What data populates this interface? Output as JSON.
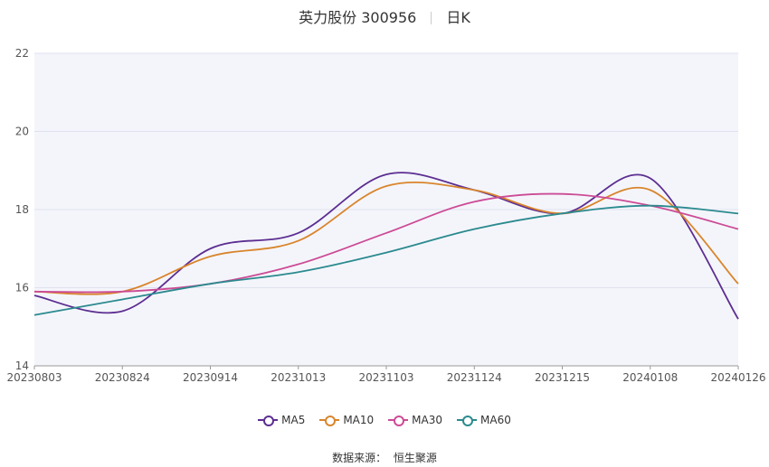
{
  "header": {
    "title": "英力股份 300956",
    "period": "日K"
  },
  "source": {
    "label": "数据来源：",
    "name": "恒生聚源"
  },
  "colors": {
    "up": "#ee6f6f",
    "down": "#91e85a",
    "ma5": "#5c2e91",
    "ma10": "#d9852c",
    "ma30": "#cc4b96",
    "ma60": "#2b8a8e",
    "plot_bg": "#f4f5fb"
  },
  "chart_data": {
    "type": "candlestick",
    "title": "英力股份 300956",
    "xlabel": "",
    "ylabel": "",
    "ylim": [
      14,
      22
    ],
    "yticks": [
      14,
      16,
      18,
      20,
      22
    ],
    "xticks": [
      "20230803",
      "20230824",
      "20230914",
      "20231013",
      "20231103",
      "20231124",
      "20231215",
      "20240108",
      "20240126"
    ],
    "grid": true,
    "legend": {
      "position": "bottom",
      "entries": [
        "MA5",
        "MA10",
        "MA30",
        "MA60"
      ]
    },
    "series": [
      {
        "name": "MA5",
        "x": [
          "20230803",
          "20230824",
          "20230914",
          "20231013",
          "20231103",
          "20231124",
          "20231215",
          "20240108",
          "20240126"
        ],
        "values": [
          15.8,
          15.4,
          17.0,
          17.4,
          18.9,
          18.5,
          17.9,
          18.8,
          15.2
        ]
      },
      {
        "name": "MA10",
        "x": [
          "20230803",
          "20230824",
          "20230914",
          "20231013",
          "20231103",
          "20231124",
          "20231215",
          "20240108",
          "20240126"
        ],
        "values": [
          15.9,
          15.9,
          16.8,
          17.2,
          18.6,
          18.5,
          17.9,
          18.5,
          16.1
        ]
      },
      {
        "name": "MA30",
        "x": [
          "20230803",
          "20230824",
          "20230914",
          "20231013",
          "20231103",
          "20231124",
          "20231215",
          "20240108",
          "20240126"
        ],
        "values": [
          15.9,
          15.9,
          16.1,
          16.6,
          17.4,
          18.2,
          18.4,
          18.1,
          17.5
        ]
      },
      {
        "name": "MA60",
        "x": [
          "20230803",
          "20230824",
          "20230914",
          "20231013",
          "20231103",
          "20231124",
          "20231215",
          "20240108",
          "20240126"
        ],
        "values": [
          15.3,
          15.7,
          16.1,
          16.4,
          16.9,
          17.5,
          17.9,
          18.1,
          17.9
        ]
      }
    ]
  }
}
